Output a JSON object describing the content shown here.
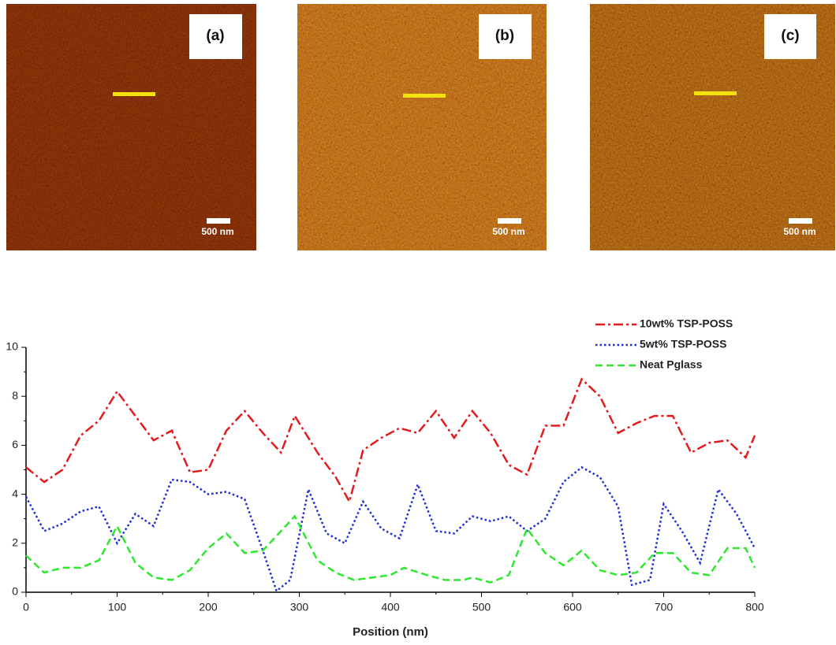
{
  "images": [
    {
      "label": "(a)",
      "scale": "500 nm"
    },
    {
      "label": "(b)",
      "scale": "500 nm"
    },
    {
      "label": "(c)",
      "scale": "500 nm"
    }
  ],
  "chart_data": {
    "type": "line",
    "x_label": "Position (nm)",
    "xlim": [
      0,
      800
    ],
    "xticks": [
      0,
      100,
      200,
      300,
      400,
      500,
      600,
      700,
      800
    ],
    "ylim": [
      0,
      10
    ],
    "yticks": [
      0,
      2,
      4,
      6,
      8,
      10
    ],
    "legend": "upper right",
    "series": [
      {
        "name": "10wt% TSP-POSS",
        "color": "#e41a1c",
        "linestyle": "dashdot",
        "x": [
          0,
          20,
          40,
          60,
          80,
          100,
          120,
          140,
          160,
          180,
          200,
          220,
          240,
          260,
          280,
          295,
          320,
          340,
          355,
          370,
          390,
          410,
          430,
          450,
          470,
          490,
          510,
          530,
          550,
          570,
          590,
          610,
          630,
          650,
          670,
          690,
          710,
          730,
          750,
          770,
          790,
          800
        ],
        "values": [
          5.1,
          4.5,
          5.0,
          6.4,
          7.0,
          8.2,
          7.2,
          6.2,
          6.6,
          4.9,
          5.0,
          6.6,
          7.4,
          6.5,
          5.7,
          7.2,
          5.7,
          4.7,
          3.7,
          5.8,
          6.3,
          6.7,
          6.5,
          7.4,
          6.3,
          7.4,
          6.5,
          5.2,
          4.8,
          6.8,
          6.8,
          8.7,
          8.0,
          6.5,
          6.9,
          7.2,
          7.2,
          5.7,
          6.1,
          6.2,
          5.5,
          6.4
        ]
      },
      {
        "name": "5wt% TSP-POSS",
        "color": "#1f2fd6",
        "linestyle": "dotted",
        "x": [
          0,
          20,
          40,
          60,
          80,
          100,
          120,
          140,
          160,
          180,
          200,
          220,
          240,
          260,
          275,
          290,
          310,
          330,
          350,
          370,
          390,
          410,
          430,
          450,
          470,
          490,
          510,
          530,
          550,
          570,
          590,
          610,
          630,
          650,
          665,
          685,
          700,
          720,
          740,
          760,
          780,
          800
        ],
        "values": [
          3.9,
          2.5,
          2.8,
          3.3,
          3.5,
          2.0,
          3.2,
          2.7,
          4.6,
          4.5,
          4.0,
          4.1,
          3.8,
          1.7,
          0.05,
          0.5,
          4.2,
          2.4,
          2.0,
          3.7,
          2.6,
          2.2,
          4.4,
          2.5,
          2.4,
          3.1,
          2.9,
          3.1,
          2.5,
          3.0,
          4.5,
          5.1,
          4.7,
          3.5,
          0.3,
          0.5,
          3.6,
          2.5,
          1.2,
          4.2,
          3.2,
          1.8
        ]
      },
      {
        "name": "Neat Pglass",
        "color": "#2ee82e",
        "linestyle": "dashed",
        "x": [
          0,
          20,
          40,
          60,
          80,
          100,
          120,
          140,
          160,
          180,
          200,
          220,
          240,
          260,
          280,
          295,
          320,
          340,
          360,
          380,
          400,
          415,
          440,
          460,
          480,
          490,
          510,
          530,
          550,
          570,
          590,
          610,
          630,
          650,
          670,
          690,
          710,
          730,
          750,
          770,
          790,
          800
        ],
        "values": [
          1.5,
          0.8,
          1.0,
          1.0,
          1.3,
          2.7,
          1.2,
          0.6,
          0.5,
          0.9,
          1.8,
          2.4,
          1.6,
          1.7,
          2.5,
          3.1,
          1.3,
          0.8,
          0.5,
          0.6,
          0.7,
          1.0,
          0.7,
          0.5,
          0.5,
          0.6,
          0.4,
          0.7,
          2.6,
          1.6,
          1.1,
          1.7,
          0.9,
          0.7,
          0.8,
          1.6,
          1.6,
          0.8,
          0.7,
          1.8,
          1.8,
          1.0
        ]
      }
    ]
  }
}
